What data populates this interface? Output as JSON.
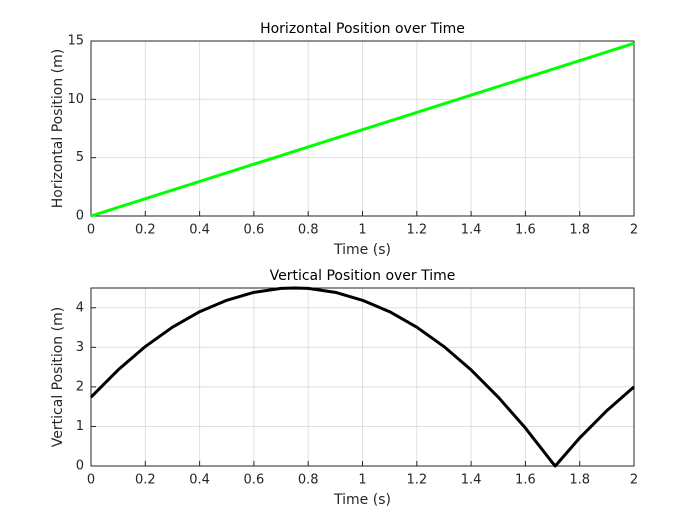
{
  "chart_data": [
    {
      "type": "line",
      "title": "Horizontal Position over Time",
      "xlabel": "Time (s)",
      "ylabel": "Horizontal Position (m)",
      "x": [
        0,
        2
      ],
      "series": [
        {
          "color": "#00ff00",
          "values": [
            0,
            14.8
          ]
        }
      ],
      "xlim": [
        0,
        2
      ],
      "xticks": [
        0,
        0.2,
        0.4,
        0.6,
        0.8,
        1,
        1.2,
        1.4,
        1.6,
        1.8,
        2
      ],
      "ylim": [
        0,
        15
      ],
      "yticks": [
        0,
        5,
        10,
        15
      ],
      "grid": true
    },
    {
      "type": "line",
      "title": "Vertical Position over Time",
      "xlabel": "Time (s)",
      "ylabel": "Vertical Position (m)",
      "x": [
        0,
        0.1,
        0.2,
        0.3,
        0.4,
        0.5,
        0.6,
        0.7,
        0.75,
        0.8,
        0.9,
        1,
        1.1,
        1.2,
        1.3,
        1.4,
        1.5,
        1.6,
        1.7,
        1.71,
        1.8,
        1.9,
        2
      ],
      "series": [
        {
          "color": "#000000",
          "values": [
            1.74,
            2.43,
            3.02,
            3.51,
            3.9,
            4.19,
            4.39,
            4.49,
            4.5,
            4.49,
            4.39,
            4.19,
            3.9,
            3.51,
            3.02,
            2.43,
            1.74,
            0.96,
            0.08,
            0,
            0.71,
            1.4,
            2
          ]
        }
      ],
      "xlim": [
        0,
        2
      ],
      "xticks": [
        0,
        0.2,
        0.4,
        0.6,
        0.8,
        1,
        1.2,
        1.4,
        1.6,
        1.8,
        2
      ],
      "ylim": [
        0,
        4.5
      ],
      "yticks": [
        0,
        1,
        2,
        3,
        4
      ],
      "grid": true
    }
  ]
}
